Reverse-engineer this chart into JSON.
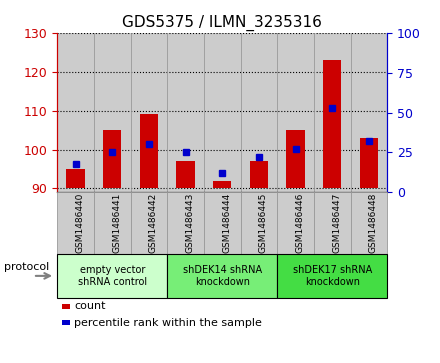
{
  "title": "GDS5375 / ILMN_3235316",
  "samples": [
    "GSM1486440",
    "GSM1486441",
    "GSM1486442",
    "GSM1486443",
    "GSM1486444",
    "GSM1486445",
    "GSM1486446",
    "GSM1486447",
    "GSM1486448"
  ],
  "counts": [
    95,
    105,
    109,
    97,
    92,
    97,
    105,
    123,
    103
  ],
  "percentiles": [
    18,
    25,
    30,
    25,
    12,
    22,
    27,
    53,
    32
  ],
  "ylim_left": [
    89,
    130
  ],
  "ylim_right": [
    0,
    100
  ],
  "yticks_left": [
    90,
    100,
    110,
    120,
    130
  ],
  "yticks_right": [
    0,
    25,
    50,
    75,
    100
  ],
  "baseline": 90,
  "bar_color": "#cc0000",
  "dot_color": "#0000cc",
  "bar_width": 0.5,
  "protocols": [
    {
      "label": "empty vector\nshRNA control",
      "start": 0,
      "end": 3,
      "color": "#ccffcc"
    },
    {
      "label": "shDEK14 shRNA\nknockdown",
      "start": 3,
      "end": 6,
      "color": "#77ee77"
    },
    {
      "label": "shDEK17 shRNA\nknockdown",
      "start": 6,
      "end": 9,
      "color": "#44dd44"
    }
  ],
  "protocol_label": "protocol",
  "legend_count": "count",
  "legend_percentile": "percentile rank within the sample",
  "title_fontsize": 11,
  "axis_color_left": "#cc0000",
  "axis_color_right": "#0000cc",
  "tick_fontsize": 9,
  "sample_bg_color": "#cccccc",
  "sample_line_color": "#999999",
  "grid_color": "black",
  "grid_style": ":"
}
